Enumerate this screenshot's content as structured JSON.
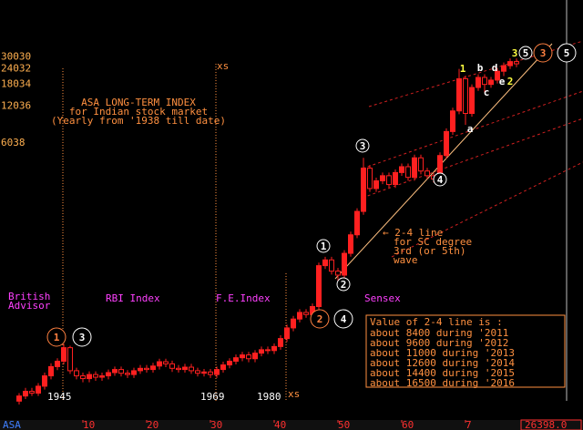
{
  "chart_data": {
    "type": "candlestick",
    "symbol": "ASA",
    "title": "ASA LONG-TERM INDEX",
    "subtitle": [
      "for Indian stock market",
      "(Yearly from '1938 till date)"
    ],
    "x": [
      0,
      1,
      2,
      3,
      4,
      5,
      6,
      7,
      8,
      9,
      10,
      11,
      12,
      13,
      14,
      15,
      16,
      17,
      18,
      19,
      20,
      21,
      22,
      23,
      24,
      25,
      26,
      27,
      28,
      29,
      30,
      31,
      32,
      33,
      34,
      35,
      36,
      37,
      38,
      39,
      40,
      41,
      42,
      43,
      44,
      45,
      46,
      47,
      48,
      49,
      50,
      51,
      52,
      53,
      54,
      55,
      56,
      57,
      58,
      59,
      60,
      61,
      62,
      63,
      64,
      65,
      66,
      67,
      68,
      69,
      70,
      71,
      72,
      73,
      74,
      75,
      76,
      77,
      78
    ],
    "open": [
      50,
      55,
      60,
      58,
      66,
      80,
      95,
      105,
      135,
      88,
      80,
      76,
      82,
      78,
      80,
      85,
      90,
      84,
      82,
      88,
      92,
      90,
      96,
      104,
      100,
      92,
      90,
      94,
      88,
      84,
      86,
      82,
      90,
      98,
      105,
      112,
      118,
      110,
      122,
      130,
      128,
      138,
      160,
      195,
      230,
      260,
      250,
      290,
      620,
      690,
      560,
      520,
      780,
      1100,
      1700,
      3800,
      2600,
      3000,
      3300,
      2800,
      3500,
      3900,
      3200,
      4600,
      3600,
      3300,
      3100,
      4800,
      7500,
      11000,
      20000,
      10500,
      17000,
      20500,
      18000,
      19500,
      23000,
      25500,
      27500
    ],
    "high": [
      58,
      64,
      64,
      70,
      85,
      101,
      111,
      145,
      140,
      93,
      85,
      87,
      87,
      85,
      90,
      95,
      95,
      89,
      93,
      98,
      98,
      102,
      110,
      110,
      106,
      98,
      100,
      100,
      93,
      91,
      91,
      95,
      104,
      111,
      119,
      125,
      125,
      129,
      138,
      138,
      146,
      170,
      207,
      244,
      276,
      276,
      307,
      657,
      731,
      731,
      594,
      827,
      1166,
      1802,
      4600,
      4028,
      3180,
      3498,
      3498,
      3710,
      4134,
      4134,
      4876,
      4876,
      3816,
      3498,
      5088,
      7950,
      11660,
      24000,
      21200,
      18020,
      21730,
      21730,
      20670,
      24380,
      27030,
      29150,
      29150
    ],
    "low": [
      47,
      52,
      55,
      55,
      62,
      75,
      89,
      99,
      83,
      75,
      71,
      71,
      73,
      73,
      75,
      80,
      79,
      77,
      77,
      83,
      85,
      85,
      90,
      94,
      86,
      85,
      85,
      83,
      79,
      79,
      77,
      77,
      85,
      92,
      99,
      105,
      103,
      103,
      115,
      120,
      120,
      130,
      150,
      183,
      216,
      235,
      235,
      273,
      583,
      526,
      430,
      489,
      733,
      1034,
      1598,
      2444,
      2444,
      2820,
      2632,
      2632,
      3290,
      3008,
      3008,
      3384,
      3102,
      2914,
      2914,
      4512,
      7050,
      10340,
      8500,
      9870,
      15980,
      15500,
      16920,
      18330,
      21000,
      23970,
      24810
    ],
    "close": [
      55,
      60,
      58,
      66,
      80,
      95,
      105,
      135,
      88,
      80,
      76,
      82,
      78,
      80,
      85,
      90,
      84,
      82,
      88,
      92,
      90,
      96,
      104,
      100,
      92,
      90,
      94,
      88,
      84,
      86,
      82,
      90,
      98,
      105,
      112,
      118,
      110,
      122,
      130,
      128,
      138,
      160,
      195,
      230,
      260,
      250,
      290,
      620,
      690,
      560,
      520,
      780,
      1100,
      1700,
      3800,
      2600,
      3000,
      3300,
      2800,
      3500,
      3900,
      3200,
      4600,
      3600,
      3300,
      3100,
      4800,
      7500,
      11000,
      20000,
      10500,
      17000,
      20500,
      18000,
      19500,
      23000,
      25500,
      27500,
      26398
    ],
    "color": "#ff2020",
    "log_scale_y": true,
    "ylim": [
      52,
      52000
    ],
    "yticks": [
      6038,
      12036,
      18034,
      24032,
      30030
    ],
    "xlim": [
      -3,
      88
    ],
    "xticks": [
      10,
      20,
      30,
      40,
      50,
      60,
      {
        "value": 70,
        "label": "7"
      }
    ],
    "status_value": "26398.0",
    "era_labels": [
      "British",
      "Advisor",
      "RBI Index",
      "F.E.Index",
      "Sensex"
    ],
    "year_labels": [
      "1945",
      "1969",
      "1980"
    ],
    "xs_labels": [
      "xs",
      "xs"
    ],
    "line_note": [
      "← 2-4 line",
      "for SC degree",
      "3rd (or 5th)",
      "wave"
    ],
    "box": {
      "title": "Value of 2-4 line is :",
      "lines": [
        "about 8400 during '2011",
        "about 9600 during '2012",
        "about 11000 during '2013",
        "about 12600 during '2014",
        "about 14400 during '2015",
        "about 16500 during '2016"
      ]
    },
    "wave_labels": [
      "1",
      "3",
      "2",
      "4",
      "3",
      "5",
      "1",
      "2",
      "3",
      "4",
      "5",
      "1",
      "b",
      "d",
      "3",
      "a",
      "c",
      "e",
      "2"
    ]
  }
}
